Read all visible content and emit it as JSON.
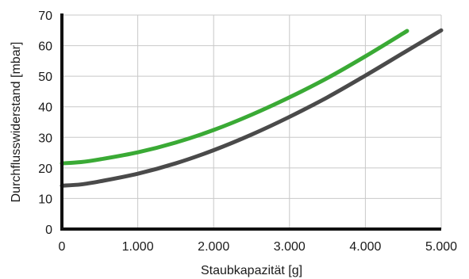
{
  "chart_data": {
    "type": "line",
    "title": "",
    "xlabel": "Staubkapazität [g]",
    "ylabel": "Durchflusswiderstand [mbar]",
    "xlim": [
      0,
      5000
    ],
    "ylim": [
      0,
      70
    ],
    "x_ticks": [
      0,
      1000,
      2000,
      3000,
      4000,
      5000
    ],
    "x_tick_labels": [
      "0",
      "1.000",
      "2.000",
      "3.000",
      "4.000",
      "5.000"
    ],
    "y_ticks": [
      0,
      10,
      20,
      30,
      40,
      50,
      60,
      70
    ],
    "y_tick_labels": [
      "0",
      "10",
      "20",
      "30",
      "40",
      "50",
      "60",
      "70"
    ],
    "grid": true,
    "legend": "none",
    "series": [
      {
        "color": "#3aaa35",
        "x": [
          0,
          250,
          500,
          1000,
          1500,
          2000,
          2500,
          3000,
          3500,
          4000,
          4550
        ],
        "y": [
          21.5,
          21.9,
          22.8,
          25.1,
          28.3,
          32.4,
          37.4,
          43.1,
          49.4,
          56.5,
          64.8
        ]
      },
      {
        "color": "#4a4a4a",
        "x": [
          0,
          250,
          500,
          1000,
          1500,
          2000,
          2500,
          3000,
          3500,
          4000,
          4500,
          5000
        ],
        "y": [
          14.2,
          14.6,
          15.6,
          18.1,
          21.5,
          25.8,
          30.9,
          36.7,
          43.1,
          50.2,
          57.6,
          65.0
        ]
      }
    ]
  }
}
